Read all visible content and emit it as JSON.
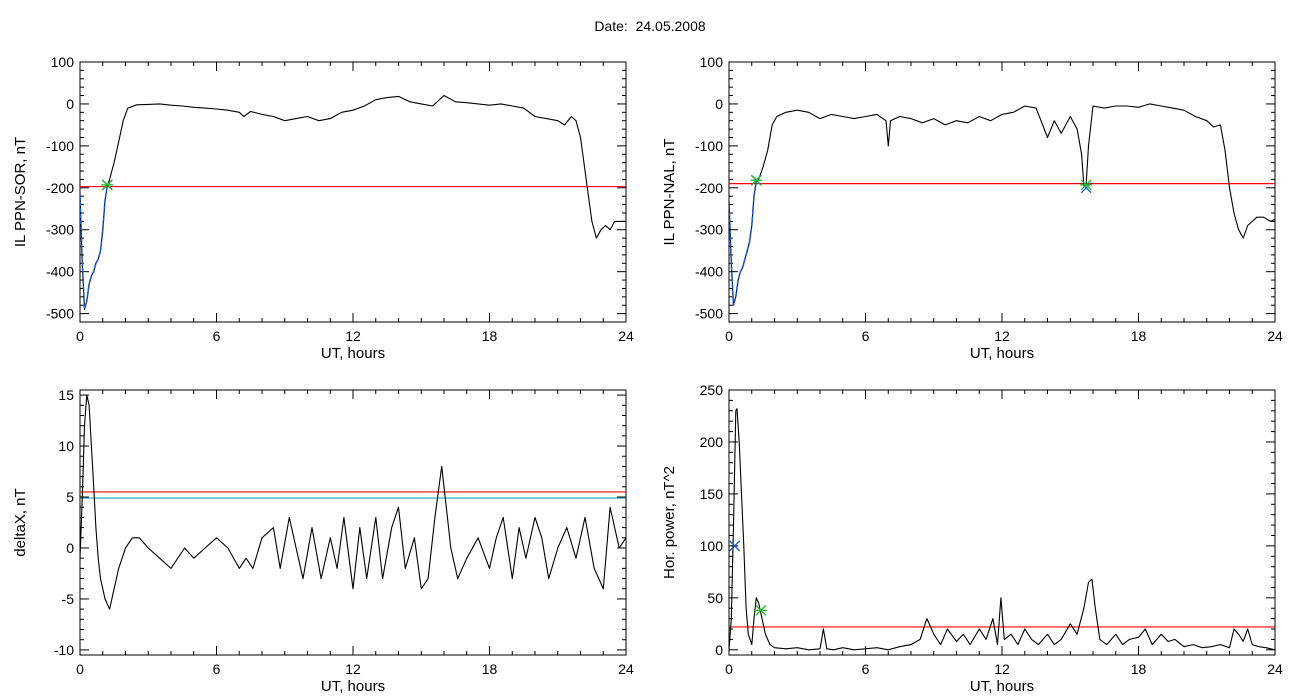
{
  "figure": {
    "title": "Date:  24.05.2008"
  },
  "chart_data": [
    {
      "type": "line",
      "xlabel": "UT, hours",
      "ylabel": "IL PPN-SOR, nT",
      "xlim": [
        0,
        24
      ],
      "ylim": [
        -520,
        100
      ],
      "xticks": [
        0,
        6,
        12,
        18,
        24
      ],
      "yticks": [
        100,
        0,
        -100,
        -200,
        -300,
        -400,
        -500
      ],
      "grid": false,
      "series": [
        {
          "color": "#000000",
          "style": "solid",
          "x": [
            0,
            0.1,
            0.2,
            0.3,
            0.4,
            0.5,
            0.6,
            0.7,
            0.8,
            0.9,
            1.0,
            1.1,
            1.2,
            1.3,
            1.4,
            1.5,
            1.7,
            1.9,
            2.1,
            2.5,
            3,
            3.5,
            4,
            4.5,
            5,
            5.5,
            6,
            6.5,
            7,
            7.2,
            7.5,
            8,
            8.5,
            9,
            9.5,
            10,
            10.5,
            11,
            11.5,
            12,
            12.5,
            13,
            13.5,
            14,
            14.5,
            15,
            15.5,
            16,
            16.5,
            17,
            17.5,
            18,
            18.5,
            19,
            19.5,
            20,
            20.5,
            21,
            21.3,
            21.6,
            21.8,
            22,
            22.1,
            22.3,
            22.5,
            22.7,
            22.9,
            23.1,
            23.3,
            23.5,
            23.7,
            24
          ],
          "y": [
            -220,
            -380,
            -490,
            -470,
            -430,
            -410,
            -400,
            -380,
            -370,
            -350,
            -300,
            -230,
            -195,
            -180,
            -160,
            -140,
            -90,
            -40,
            -10,
            -2,
            -1,
            0,
            -3,
            -5,
            -8,
            -10,
            -12,
            -15,
            -20,
            -30,
            -18,
            -25,
            -30,
            -40,
            -35,
            -30,
            -40,
            -35,
            -20,
            -15,
            -5,
            10,
            15,
            18,
            5,
            0,
            -5,
            20,
            5,
            3,
            0,
            -3,
            0,
            -5,
            -10,
            -30,
            -35,
            -40,
            -50,
            -30,
            -40,
            -80,
            -120,
            -200,
            -280,
            -320,
            -300,
            -290,
            -300,
            -280,
            -280,
            -280
          ]
        },
        {
          "color": "#1a5fd6",
          "style": "dashed",
          "x": [
            0,
            0.1,
            0.2,
            0.3,
            0.4,
            0.5,
            0.6,
            0.7,
            0.8,
            0.9,
            1.0,
            1.1,
            1.2,
            1.3
          ],
          "y": [
            -220,
            -380,
            -490,
            -470,
            -430,
            -410,
            -400,
            -380,
            -370,
            -350,
            -300,
            -230,
            -195,
            -190
          ]
        }
      ],
      "hlines": [
        {
          "y": -197,
          "color": "#ff0000"
        }
      ],
      "markers": [
        {
          "x": 1.2,
          "y": -193,
          "symbol": "x",
          "color": "#1a5fd6"
        },
        {
          "x": 1.2,
          "y": -193,
          "symbol": "asterisk",
          "color": "#22b822"
        }
      ]
    },
    {
      "type": "line",
      "xlabel": "UT, hours",
      "ylabel": "IL PPN-NAL, nT",
      "xlim": [
        0,
        24
      ],
      "ylim": [
        -520,
        100
      ],
      "xticks": [
        0,
        6,
        12,
        18,
        24
      ],
      "yticks": [
        100,
        0,
        -100,
        -200,
        -300,
        -400,
        -500
      ],
      "grid": false,
      "series": [
        {
          "color": "#000000",
          "style": "solid",
          "x": [
            0,
            0.1,
            0.2,
            0.3,
            0.4,
            0.5,
            0.6,
            0.7,
            0.8,
            0.9,
            1.0,
            1.1,
            1.2,
            1.3,
            1.5,
            1.7,
            1.9,
            2.1,
            2.5,
            3,
            3.5,
            4,
            4.5,
            5,
            5.5,
            6,
            6.5,
            6.9,
            7.0,
            7.1,
            7.5,
            8,
            8.5,
            9,
            9.5,
            10,
            10.5,
            11,
            11.5,
            12,
            12.5,
            13,
            13.5,
            14,
            14.3,
            14.6,
            15,
            15.3,
            15.5,
            15.6,
            15.7,
            15.8,
            16,
            16.5,
            17,
            17.5,
            18,
            18.5,
            19,
            19.5,
            20,
            20.5,
            21,
            21.3,
            21.6,
            21.8,
            22,
            22.2,
            22.4,
            22.6,
            22.8,
            23,
            23.2,
            23.5,
            23.8,
            24
          ],
          "y": [
            -230,
            -380,
            -480,
            -460,
            -420,
            -400,
            -390,
            -370,
            -350,
            -330,
            -290,
            -220,
            -185,
            -180,
            -150,
            -110,
            -50,
            -30,
            -20,
            -15,
            -20,
            -35,
            -25,
            -30,
            -35,
            -30,
            -25,
            -40,
            -100,
            -40,
            -30,
            -35,
            -45,
            -35,
            -50,
            -40,
            -45,
            -30,
            -40,
            -25,
            -20,
            -5,
            -10,
            -80,
            -40,
            -70,
            -30,
            -60,
            -120,
            -195,
            -190,
            -100,
            -5,
            -10,
            -5,
            -5,
            -8,
            0,
            -5,
            -10,
            -15,
            -30,
            -40,
            -55,
            -50,
            -110,
            -200,
            -260,
            -300,
            -320,
            -290,
            -280,
            -270,
            -270,
            -280,
            -275
          ]
        },
        {
          "color": "#1a5fd6",
          "style": "dashed",
          "x": [
            0,
            0.1,
            0.2,
            0.3,
            0.4,
            0.5,
            0.6,
            0.7,
            0.8,
            0.9,
            1.0,
            1.1,
            1.2
          ],
          "y": [
            -230,
            -380,
            -480,
            -460,
            -420,
            -400,
            -390,
            -370,
            -350,
            -330,
            -290,
            -220,
            -185
          ]
        }
      ],
      "hlines": [
        {
          "y": -190,
          "color": "#ff0000"
        }
      ],
      "markers": [
        {
          "x": 1.2,
          "y": -182,
          "symbol": "x",
          "color": "#1a5fd6"
        },
        {
          "x": 1.2,
          "y": -182,
          "symbol": "asterisk",
          "color": "#22b822"
        },
        {
          "x": 15.7,
          "y": -200,
          "symbol": "x",
          "color": "#1a5fd6"
        },
        {
          "x": 15.7,
          "y": -193,
          "symbol": "asterisk",
          "color": "#22b822"
        }
      ]
    },
    {
      "type": "line",
      "xlabel": "UT, hours",
      "ylabel": "deltaX, nT",
      "xlim": [
        0,
        24
      ],
      "ylim": [
        -10.5,
        15.5
      ],
      "xticks": [
        0,
        6,
        12,
        18,
        24
      ],
      "yticks": [
        15,
        10,
        5,
        0,
        -5,
        -10
      ],
      "grid": false,
      "series": [
        {
          "color": "#000000",
          "style": "solid",
          "x": [
            0,
            0.1,
            0.2,
            0.3,
            0.4,
            0.5,
            0.6,
            0.7,
            0.8,
            0.9,
            1.0,
            1.1,
            1.3,
            1.5,
            1.7,
            2,
            2.3,
            2.6,
            3,
            3.5,
            4,
            4.3,
            4.6,
            5,
            5.5,
            6,
            6.5,
            7,
            7.3,
            7.6,
            8,
            8.5,
            8.8,
            9.2,
            9.5,
            9.8,
            10.2,
            10.6,
            11,
            11.3,
            11.6,
            12,
            12.3,
            12.6,
            13,
            13.3,
            13.7,
            14,
            14.3,
            14.7,
            15,
            15.3,
            15.6,
            15.9,
            16.1,
            16.3,
            16.6,
            17,
            17.5,
            18,
            18.3,
            18.6,
            19,
            19.3,
            19.6,
            20,
            20.3,
            20.6,
            21,
            21.4,
            21.8,
            22.2,
            22.6,
            23,
            23.3,
            23.7,
            24
          ],
          "y": [
            -1,
            5,
            12,
            15,
            14,
            10,
            6,
            2,
            -1,
            -3,
            -4,
            -5,
            -6,
            -4,
            -2,
            0,
            1,
            1,
            0,
            -1,
            -2,
            -1,
            0,
            -1,
            0,
            1,
            0,
            -2,
            -1,
            -2,
            1,
            2,
            -2,
            3,
            0,
            -3,
            2,
            -3,
            1,
            -2,
            3,
            -4,
            2,
            -3,
            3,
            -3,
            2,
            4,
            -2,
            1,
            -4,
            -3,
            3,
            8,
            4,
            0,
            -3,
            -1,
            1,
            -2,
            1,
            3,
            -3,
            2,
            -1,
            3,
            1,
            -3,
            0,
            2,
            -1,
            3,
            -2,
            -4,
            4,
            0,
            1
          ]
        }
      ],
      "hlines": [
        {
          "y": 5.5,
          "color": "#ff0000"
        },
        {
          "y": 4.9,
          "color": "#1aa5b5"
        }
      ],
      "markers": []
    },
    {
      "type": "line",
      "xlabel": "UT, hours",
      "ylabel": "Hor. power, nT^2",
      "xlim": [
        0,
        24
      ],
      "ylim": [
        -5,
        250
      ],
      "xticks": [
        0,
        6,
        12,
        18,
        24
      ],
      "yticks": [
        250,
        200,
        150,
        100,
        50,
        0
      ],
      "grid": false,
      "series": [
        {
          "color": "#000000",
          "style": "solid",
          "x": [
            0,
            0.1,
            0.2,
            0.3,
            0.35,
            0.45,
            0.55,
            0.65,
            0.75,
            0.85,
            1.0,
            1.1,
            1.2,
            1.3,
            1.4,
            1.6,
            1.8,
            2.0,
            2.5,
            3,
            3.5,
            4,
            4.15,
            4.3,
            4.6,
            5,
            5.5,
            6,
            6.5,
            7,
            7.5,
            8,
            8.4,
            8.7,
            9,
            9.3,
            9.6,
            10,
            10.3,
            10.6,
            11,
            11.3,
            11.6,
            11.8,
            11.95,
            12.1,
            12.4,
            12.7,
            13,
            13.3,
            13.6,
            14,
            14.3,
            14.6,
            15,
            15.3,
            15.6,
            15.8,
            15.95,
            16.1,
            16.3,
            16.6,
            17,
            17.3,
            17.6,
            18,
            18.3,
            18.6,
            19,
            19.3,
            19.6,
            20,
            20.4,
            20.8,
            21.2,
            21.6,
            22,
            22.2,
            22.4,
            22.6,
            22.8,
            23,
            23.3,
            23.6,
            24
          ],
          "y": [
            0,
            30,
            120,
            230,
            232,
            200,
            150,
            100,
            40,
            15,
            5,
            30,
            50,
            45,
            35,
            15,
            5,
            2,
            1,
            2,
            0,
            1,
            20,
            1,
            0,
            2,
            0,
            1,
            2,
            0,
            3,
            5,
            10,
            30,
            15,
            5,
            20,
            8,
            15,
            5,
            20,
            10,
            30,
            5,
            50,
            10,
            15,
            5,
            20,
            10,
            5,
            15,
            5,
            10,
            25,
            15,
            40,
            65,
            68,
            40,
            10,
            5,
            15,
            5,
            10,
            12,
            20,
            5,
            15,
            8,
            10,
            3,
            5,
            2,
            3,
            5,
            2,
            20,
            15,
            8,
            20,
            5,
            3,
            2,
            0
          ]
        }
      ],
      "hlines": [
        {
          "y": 22,
          "color": "#ff0000"
        }
      ],
      "markers": [
        {
          "x": 0.25,
          "y": 100,
          "symbol": "x",
          "color": "#1a5fd6"
        },
        {
          "x": 1.4,
          "y": 38,
          "symbol": "asterisk",
          "color": "#22b822"
        }
      ]
    }
  ]
}
